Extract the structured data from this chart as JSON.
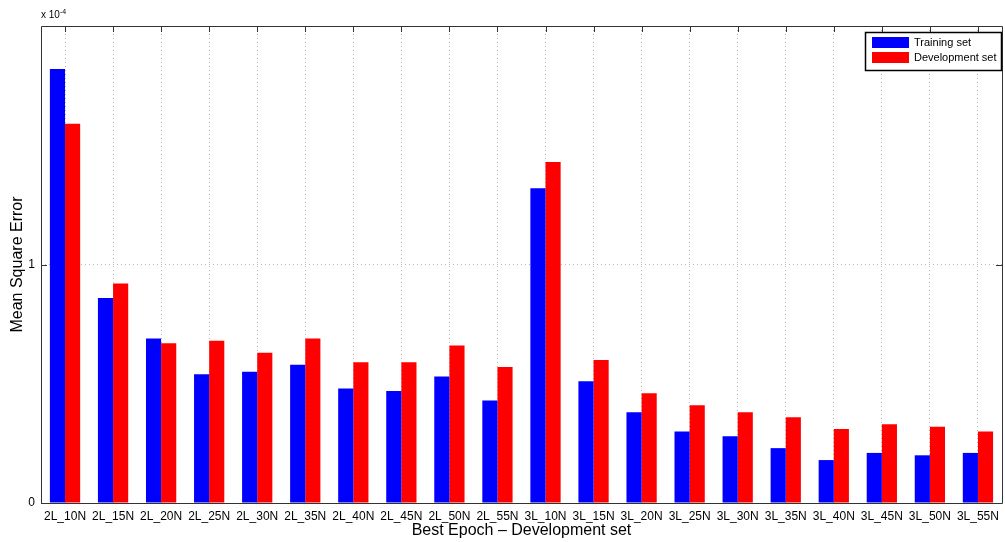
{
  "chart_data": {
    "type": "bar",
    "xlabel": "Best Epoch – Development set",
    "ylabel": "Mean Square Error",
    "annotations": [
      "x 10$^{-4}$"
    ],
    "categories": [
      "2L_10N",
      "2L_15N",
      "2L_20N",
      "2L_25N",
      "2L_30N",
      "2L_35N",
      "2L_40N",
      "2L_45N",
      "2L_50N",
      "2L_55N",
      "3L_10N",
      "3L_15N",
      "3L_20N",
      "3L_25N",
      "3L_30N",
      "3L_35N",
      "3L_40N",
      "3L_45N",
      "3L_50N",
      "3L_55N"
    ],
    "series": [
      {
        "name": "Training set",
        "color": "#0000ff",
        "values": [
          1.82,
          0.86,
          0.69,
          0.54,
          0.55,
          0.58,
          0.48,
          0.47,
          0.53,
          0.43,
          1.32,
          0.51,
          0.38,
          0.3,
          0.28,
          0.23,
          0.18,
          0.21,
          0.2,
          0.21
        ]
      },
      {
        "name": "Development set",
        "color": "#ff0000",
        "values": [
          1.59,
          0.92,
          0.67,
          0.68,
          0.63,
          0.69,
          0.59,
          0.59,
          0.66,
          0.57,
          1.43,
          0.6,
          0.46,
          0.41,
          0.38,
          0.36,
          0.31,
          0.33,
          0.32,
          0.3
        ]
      }
    ],
    "ylim": [
      0,
      2
    ],
    "yticks": [
      0,
      1
    ],
    "grid": true,
    "legend": "top right"
  }
}
